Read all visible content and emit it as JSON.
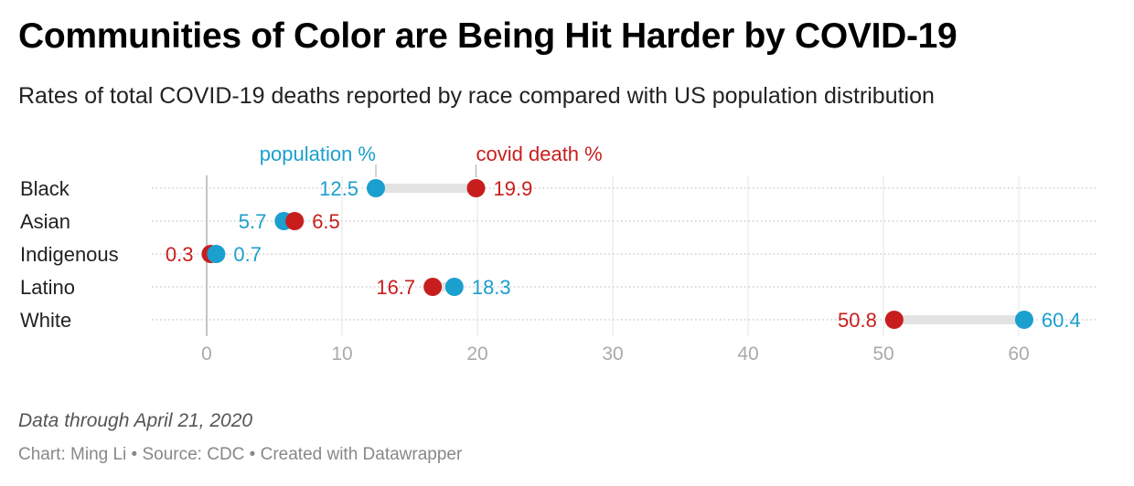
{
  "title": "Communities of Color are Being Hit Harder by COVID-19",
  "subtitle": "Rates of total COVID-19 deaths reported by race compared with US population distribution",
  "note": "Data through April 21, 2020",
  "footer": "Chart: Ming Li • Source: CDC • Created with Datawrapper",
  "colors": {
    "population": "#1a9fce",
    "deaths": "#c71e1d",
    "text": "#222222",
    "muted": "#888888",
    "grid": "#e4e4e4",
    "range_bar": "#e3e3e3"
  },
  "chart_data": {
    "type": "dot-range",
    "title": "Communities of Color are Being Hit Harder by COVID-19",
    "subtitle": "Rates of total COVID-19 deaths reported by race compared with US population distribution",
    "categories": [
      "Black",
      "Asian",
      "Indigenous",
      "Latino",
      "White"
    ],
    "series": [
      {
        "name": "population %",
        "color": "#1a9fce",
        "values": [
          12.5,
          5.7,
          0.7,
          18.3,
          60.4
        ]
      },
      {
        "name": "covid death %",
        "color": "#c71e1d",
        "values": [
          19.9,
          6.5,
          0.3,
          16.7,
          50.8
        ]
      }
    ],
    "xlim": [
      -4,
      65
    ],
    "xticks": [
      0,
      10,
      20,
      30,
      40,
      50,
      60
    ],
    "grid": true,
    "legend": "inline-top"
  }
}
